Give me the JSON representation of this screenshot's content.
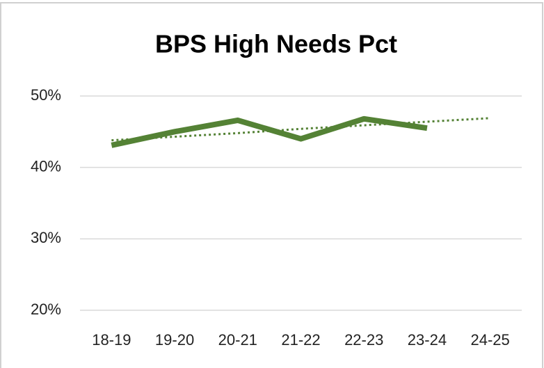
{
  "chart_data": {
    "type": "line",
    "title": "BPS High Needs Pct",
    "categories": [
      "18-19",
      "19-20",
      "20-21",
      "21-22",
      "22-23",
      "23-24",
      "24-25"
    ],
    "series": [
      {
        "color": "#548235",
        "style": "solid",
        "values": [
          43.1,
          45.0,
          46.6,
          44.0,
          46.8,
          45.5,
          null
        ]
      },
      {
        "color": "#548235",
        "style": "dotted",
        "values": [
          43.8,
          44.3,
          44.8,
          45.4,
          45.9,
          46.4,
          46.9
        ]
      }
    ],
    "ylim": [
      20,
      50
    ],
    "yticks": [
      {
        "value": 20,
        "label": "20%"
      },
      {
        "value": 30,
        "label": "30%"
      },
      {
        "value": 40,
        "label": "40%"
      },
      {
        "value": 50,
        "label": "50%"
      }
    ],
    "grid": true
  }
}
